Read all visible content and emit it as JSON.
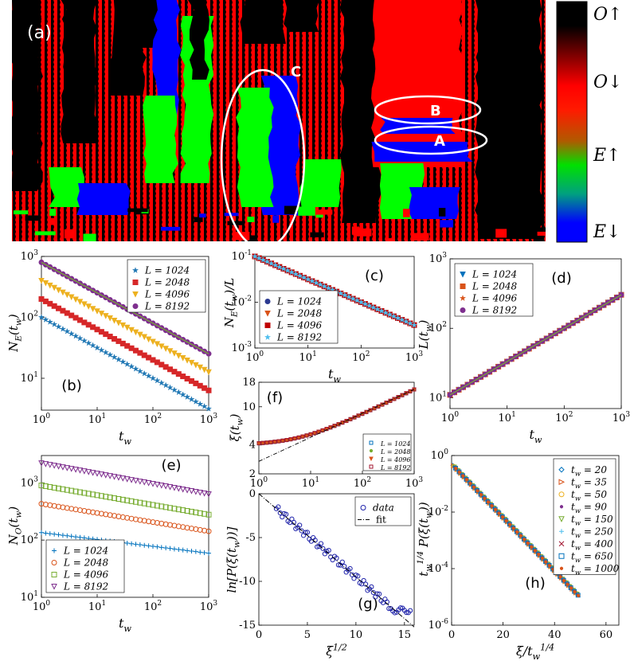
{
  "figure": {
    "panel_a": {
      "label": "(a)",
      "annotations": [
        "A",
        "B",
        "C"
      ],
      "colorbar_labels": [
        "O↑",
        "O↓",
        "E↑",
        "E↓"
      ],
      "colors": {
        "O_up": "#000000",
        "O_down": "#ff0000",
        "E_up": "#00ff00",
        "E_down": "#0000ff"
      }
    }
  },
  "chart_data": [
    {
      "id": "b",
      "type": "scatter",
      "panel_label": "(b)",
      "xlabel": "t_w",
      "ylabel": "N_E(t_w)",
      "xscale": "log",
      "yscale": "log",
      "xlim": [
        1,
        1000
      ],
      "ylim": [
        3,
        1000
      ],
      "xticks": [
        "10^0",
        "10^1",
        "10^2",
        "10^3"
      ],
      "yticks": [
        "10^1",
        "10^2",
        "10^3"
      ],
      "legend": "top-right",
      "series": [
        {
          "name": "L = 1024",
          "marker": "star",
          "color": "#1f77b4",
          "x0": 1,
          "y0": 100,
          "slope": -0.5
        },
        {
          "name": "L = 2048",
          "marker": "square",
          "color": "#d62728",
          "x0": 1,
          "y0": 200,
          "slope": -0.5
        },
        {
          "name": "L = 4096",
          "marker": "tri-down",
          "color": "#edb120",
          "x0": 1,
          "y0": 400,
          "slope": -0.5
        },
        {
          "name": "L = 8192",
          "marker": "circle",
          "color": "#7e2f8e",
          "x0": 1,
          "y0": 800,
          "slope": -0.5
        }
      ],
      "fit": {
        "color": "#77ac30",
        "y0": 800,
        "slope": -0.5
      }
    },
    {
      "id": "c",
      "type": "scatter",
      "panel_label": "(c)",
      "xlabel": "t_w",
      "ylabel": "N_E(t_w)/L",
      "xscale": "log",
      "yscale": "log",
      "xlim": [
        1,
        1000
      ],
      "ylim": [
        0.001,
        0.1
      ],
      "xticks": [
        "10^0",
        "10^1",
        "10^2",
        "10^3"
      ],
      "yticks": [
        "10^-3",
        "10^-2",
        "10^-1"
      ],
      "legend": "bottom-left",
      "series": [
        {
          "name": "L = 1024",
          "marker": "circle",
          "color": "#2b3990",
          "x0": 1,
          "y0": 0.1,
          "slope": -0.5
        },
        {
          "name": "L = 2048",
          "marker": "tri-down",
          "color": "#d95319",
          "x0": 1,
          "y0": 0.1,
          "slope": -0.5
        },
        {
          "name": "L = 4096",
          "marker": "square",
          "color": "#c00000",
          "x0": 1,
          "y0": 0.1,
          "slope": -0.5
        },
        {
          "name": "L = 8192",
          "marker": "star",
          "color": "#4dbeee",
          "x0": 1,
          "y0": 0.1,
          "slope": -0.5
        }
      ]
    },
    {
      "id": "d",
      "type": "scatter",
      "panel_label": "(d)",
      "xlabel": "t_w",
      "ylabel": "L(t_w)",
      "xscale": "log",
      "yscale": "log",
      "xlim": [
        1,
        1000
      ],
      "ylim": [
        7,
        1000
      ],
      "xticks": [
        "10^0",
        "10^1",
        "10^2",
        "10^3"
      ],
      "yticks": [
        "10^1",
        "10^2",
        "10^3"
      ],
      "legend": "top-left",
      "series": [
        {
          "name": "L = 1024",
          "marker": "tri-down",
          "color": "#0072bd",
          "x0": 1,
          "y0": 11,
          "slope": 0.48
        },
        {
          "name": "L = 2048",
          "marker": "square",
          "color": "#d95319",
          "x0": 1,
          "y0": 11,
          "slope": 0.48
        },
        {
          "name": "L = 4096",
          "marker": "star",
          "color": "#d95319",
          "x0": 1,
          "y0": 11,
          "slope": 0.48
        },
        {
          "name": "L = 8192",
          "marker": "circle",
          "color": "#7e2f8e",
          "x0": 1,
          "y0": 11,
          "slope": 0.48
        }
      ],
      "fit": {
        "color": "#77ac30",
        "y0": 11,
        "slope": 0.48
      }
    },
    {
      "id": "e",
      "type": "scatter",
      "panel_label": "(e)",
      "xlabel": "t_w",
      "ylabel": "N_O(t_w)",
      "xscale": "log",
      "yscale": "log",
      "xlim": [
        1,
        1000
      ],
      "ylim": [
        10,
        3000
      ],
      "xticks": [
        "10^0",
        "10^1",
        "10^2",
        "10^3"
      ],
      "yticks": [
        "10^1",
        "10^2",
        "10^3"
      ],
      "legend": "bottom-left",
      "series": [
        {
          "name": "L = 1024",
          "marker": "plus",
          "color": "#0072bd",
          "x0": 1,
          "y0": 135,
          "slope": -0.12
        },
        {
          "name": "L = 2048",
          "marker": "circle-open",
          "color": "#d95319",
          "x0": 1,
          "y0": 430,
          "slope": -0.16
        },
        {
          "name": "L = 4096",
          "marker": "square-open",
          "color": "#77ac30",
          "x0": 1,
          "y0": 900,
          "slope": -0.17
        },
        {
          "name": "L = 8192",
          "marker": "tri-down-open",
          "color": "#7e2f8e",
          "x0": 1,
          "y0": 2200,
          "slope": -0.18
        }
      ]
    },
    {
      "id": "f",
      "type": "scatter",
      "panel_label": "(f)",
      "xlabel": "t_w",
      "ylabel": "ξ(t_w)",
      "xscale": "log",
      "yscale": "log",
      "xlim": [
        1,
        1000
      ],
      "ylim": [
        2,
        18
      ],
      "xticks": [
        "10^0",
        "10^1",
        "10^2",
        "10^3"
      ],
      "yticks": [
        "2",
        "4",
        "10",
        "18"
      ],
      "legend": "bottom-right",
      "series": [
        {
          "name": "L = 1024",
          "marker": "square-open",
          "color": "#0072bd"
        },
        {
          "name": "L = 2048",
          "marker": "dot",
          "color": "#77ac30"
        },
        {
          "name": "L = 4096",
          "marker": "tri-down",
          "color": "#d95319"
        },
        {
          "name": "L = 8192",
          "marker": "square-open",
          "color": "#a2142f"
        }
      ]
    },
    {
      "id": "g",
      "type": "scatter",
      "panel_label": "(g)",
      "xlabel": "ξ^{1/2}",
      "ylabel": "ln[P(ξ(t_w))]",
      "xscale": "linear",
      "yscale": "linear",
      "xlim": [
        0,
        16
      ],
      "ylim": [
        -15,
        0
      ],
      "xticks": [
        "0",
        "5",
        "10",
        "15"
      ],
      "yticks": [
        "0",
        "-5",
        "-10",
        "-15"
      ],
      "legend": "top-right",
      "series": [
        {
          "name": "data",
          "marker": "circle-open",
          "color": "#1e22aa"
        }
      ],
      "fit": {
        "name": "fit",
        "color": "#000000",
        "slope": -0.95,
        "intercept": 0.0
      }
    },
    {
      "id": "h",
      "type": "scatter",
      "panel_label": "(h)",
      "xlabel": "ξ/t_w^{1/4}",
      "ylabel": "t_w^{1/4} P(ξ(t_w))",
      "xscale": "linear",
      "yscale": "log",
      "xlim": [
        0,
        65
      ],
      "ylim": [
        1e-06,
        1
      ],
      "xticks": [
        "0",
        "20",
        "40",
        "60"
      ],
      "yticks": [
        "10^-6",
        "10^-4",
        "10^-2",
        "10^0"
      ],
      "legend": "top-right",
      "series": [
        {
          "name": "t_w = 20",
          "marker": "diamond-open",
          "color": "#0072bd"
        },
        {
          "name": "t_w = 35",
          "marker": "tri-right-open",
          "color": "#d95319"
        },
        {
          "name": "t_w = 50",
          "marker": "circle-open",
          "color": "#edb120"
        },
        {
          "name": "t_w = 90",
          "marker": "dot",
          "color": "#7e2f8e"
        },
        {
          "name": "t_w = 150",
          "marker": "tri-down-open",
          "color": "#77ac30"
        },
        {
          "name": "t_w = 250",
          "marker": "plus",
          "color": "#4dbeee"
        },
        {
          "name": "t_w = 400",
          "marker": "cross",
          "color": "#a2142f"
        },
        {
          "name": "t_w = 650",
          "marker": "square-open",
          "color": "#0072bd"
        },
        {
          "name": "t_w = 1000",
          "marker": "dot",
          "color": "#d95319"
        }
      ]
    }
  ]
}
